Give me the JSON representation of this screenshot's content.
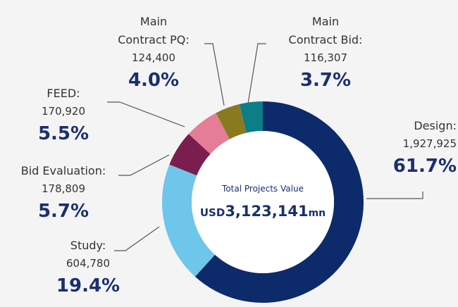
{
  "chart_data": {
    "type": "donut",
    "categories": [
      "Design:",
      "Study:",
      "Bid Evaluation:",
      "FEED:",
      "Main\nContract PQ:",
      "Main\nContract Bid:"
    ],
    "values": [
      1927925,
      604780,
      178809,
      170920,
      124400,
      116307
    ],
    "value_labels": [
      "1,927,925",
      "604,780",
      "178,809",
      "170,920",
      "124,400",
      "116,307"
    ],
    "percents": [
      61.7,
      19.4,
      5.7,
      5.5,
      4.0,
      3.7
    ],
    "percent_labels": [
      "61.7%",
      "19.4%",
      "5.7%",
      "5.5%",
      "4.0%",
      "3.7%"
    ],
    "colors": [
      "#0d2a6b",
      "#6ec6ea",
      "#7a1d4f",
      "#e47d95",
      "#8a7a1f",
      "#0b7e86"
    ],
    "center_title": "Total Projects Value",
    "center_prefix": "USD",
    "center_value": "3,123,141",
    "center_suffix": "mn"
  }
}
